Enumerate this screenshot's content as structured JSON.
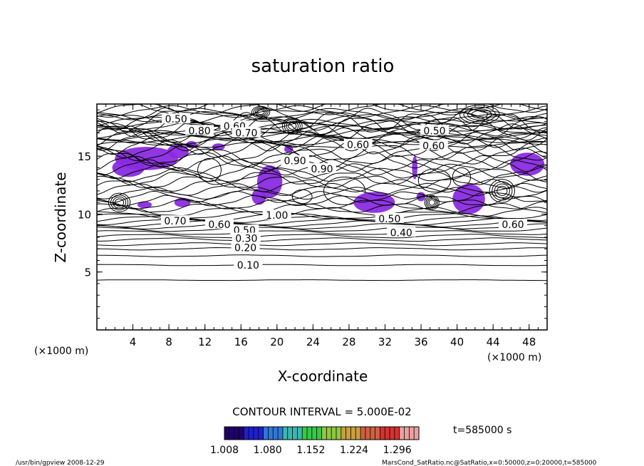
{
  "chart_data": {
    "type": "contour",
    "title": "saturation ratio",
    "xlabel": "X-coordinate",
    "ylabel": "Z-coordinate",
    "x_unit": "(×1000 m)",
    "y_unit": "(×1000 m)",
    "xlim": [
      0,
      50
    ],
    "ylim": [
      0,
      19.5
    ],
    "x_ticks": [
      "4",
      "8",
      "12",
      "16",
      "20",
      "24",
      "28",
      "32",
      "36",
      "40",
      "44",
      "48"
    ],
    "y_ticks": [
      "5",
      "10",
      "15"
    ],
    "contour_labels": [
      {
        "x": 8.8,
        "z": 18.2,
        "label": "0.50"
      },
      {
        "x": 11.4,
        "z": 17.2,
        "label": "0.80"
      },
      {
        "x": 15.3,
        "z": 17.6,
        "label": "0.60"
      },
      {
        "x": 16.6,
        "z": 17.0,
        "label": "0.70"
      },
      {
        "x": 37.5,
        "z": 17.2,
        "label": "0.50"
      },
      {
        "x": 29.0,
        "z": 16.0,
        "label": "0.60"
      },
      {
        "x": 37.4,
        "z": 15.9,
        "label": "0.60"
      },
      {
        "x": 22.0,
        "z": 14.6,
        "label": "0.90"
      },
      {
        "x": 25.0,
        "z": 13.9,
        "label": "0.90"
      },
      {
        "x": 20.0,
        "z": 9.9,
        "label": "1.00"
      },
      {
        "x": 8.7,
        "z": 9.4,
        "label": "0.70"
      },
      {
        "x": 13.6,
        "z": 9.1,
        "label": "0.60"
      },
      {
        "x": 16.4,
        "z": 8.6,
        "label": "0.50"
      },
      {
        "x": 16.6,
        "z": 7.9,
        "label": "0.30"
      },
      {
        "x": 16.5,
        "z": 7.1,
        "label": "0.20"
      },
      {
        "x": 16.8,
        "z": 5.6,
        "label": "0.10"
      },
      {
        "x": 33.8,
        "z": 8.4,
        "label": "0.40"
      },
      {
        "x": 32.5,
        "z": 9.6,
        "label": "0.50"
      },
      {
        "x": 46.2,
        "z": 9.1,
        "label": "0.60"
      }
    ],
    "contour_interval_text": "CONTOUR INTERVAL = 5.000E-02",
    "colorbar": {
      "ticks": [
        "1.008",
        "1.080",
        "1.152",
        "1.224",
        "1.296"
      ],
      "range": [
        1.008,
        1.332
      ]
    },
    "fill_color": "#8a2be2",
    "time_label": "t=585000 s"
  },
  "footer": {
    "left": "/usr/bin/gpview   2008-12-29",
    "right": "MarsCond_SatRatio.nc@SatRatio,x=0:50000,z=0:20000,t=585000"
  }
}
